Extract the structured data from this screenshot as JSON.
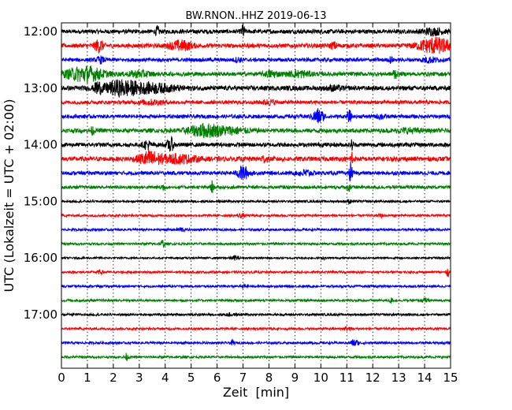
{
  "chart_data": {
    "type": "line",
    "title": "BW.RNON..HHZ 2019-06-13",
    "xlabel": "Zeit  [min]",
    "ylabel": "UTC (Lokalzeit = UTC + 02:00)",
    "xlim": [
      0,
      15
    ],
    "x_ticks": [
      0,
      1,
      2,
      3,
      4,
      5,
      6,
      7,
      8,
      9,
      10,
      11,
      12,
      13,
      14,
      15
    ],
    "x_tick_labels": [
      "0",
      "1",
      "2",
      "3",
      "4",
      "5",
      "6",
      "7",
      "8",
      "9",
      "10",
      "11",
      "12",
      "13",
      "14",
      "15"
    ],
    "y_tick_labels": [
      "12:00",
      "13:00",
      "14:00",
      "15:00",
      "16:00",
      "17:00"
    ],
    "grid": "vertical dotted",
    "color_cycle": [
      "#000000",
      "#ff0000",
      "#0000ff",
      "#008000"
    ],
    "trace_minutes": 15,
    "traces": [
      {
        "start": "12:00",
        "amplitude": 0.45,
        "events": [
          {
            "t": 3.7,
            "a": 1.0,
            "w": 0.05
          },
          {
            "t": 7.0,
            "a": 1.3,
            "w": 0.05
          },
          {
            "t": 14.3,
            "a": 0.6,
            "w": 0.3
          }
        ]
      },
      {
        "start": "12:15",
        "amplitude": 0.45,
        "events": [
          {
            "t": 1.45,
            "a": 1.3,
            "w": 0.12
          },
          {
            "t": 4.6,
            "a": 1.0,
            "w": 0.3
          },
          {
            "t": 10.5,
            "a": 0.6,
            "w": 0.1
          },
          {
            "t": 14.4,
            "a": 1.6,
            "w": 0.45
          }
        ]
      },
      {
        "start": "12:30",
        "amplitude": 0.4,
        "events": [
          {
            "t": 1.5,
            "a": 0.6,
            "w": 0.1
          },
          {
            "t": 6.8,
            "a": 0.4,
            "w": 0.1
          },
          {
            "t": 12.7,
            "a": 0.6,
            "w": 0.05
          },
          {
            "t": 14.2,
            "a": 0.5,
            "w": 0.2
          }
        ]
      },
      {
        "start": "12:45",
        "amplitude": 0.45,
        "events": [
          {
            "t": 0.9,
            "a": 1.6,
            "w": 0.5
          },
          {
            "t": 3.0,
            "a": 0.6,
            "w": 0.3
          },
          {
            "t": 8.1,
            "a": 0.6,
            "w": 0.2
          },
          {
            "t": 9.2,
            "a": 0.6,
            "w": 0.3
          },
          {
            "t": 12.85,
            "a": 1.2,
            "w": 0.05
          }
        ]
      },
      {
        "start": "13:00",
        "amplitude": 0.5,
        "events": [
          {
            "t": 1.4,
            "a": 1.3,
            "w": 0.08
          },
          {
            "t": 2.3,
            "a": 1.5,
            "w": 0.5
          },
          {
            "t": 3.6,
            "a": 0.8,
            "w": 0.6
          },
          {
            "t": 10.5,
            "a": 0.4,
            "w": 0.2
          }
        ]
      },
      {
        "start": "13:15",
        "amplitude": 0.4,
        "events": [
          {
            "t": 3.5,
            "a": 0.4,
            "w": 0.3
          },
          {
            "t": 8.0,
            "a": 0.4,
            "w": 0.2
          }
        ]
      },
      {
        "start": "13:30",
        "amplitude": 0.4,
        "events": [
          {
            "t": 9.9,
            "a": 1.5,
            "w": 0.15
          },
          {
            "t": 11.1,
            "a": 1.2,
            "w": 0.05
          },
          {
            "t": 12.3,
            "a": 0.5,
            "w": 0.1
          }
        ]
      },
      {
        "start": "13:45",
        "amplitude": 0.45,
        "events": [
          {
            "t": 1.2,
            "a": 0.8,
            "w": 0.05
          },
          {
            "t": 5.5,
            "a": 1.2,
            "w": 0.45
          },
          {
            "t": 6.5,
            "a": 0.6,
            "w": 0.5
          },
          {
            "t": 13.4,
            "a": 0.4,
            "w": 0.3
          }
        ]
      },
      {
        "start": "14:00",
        "amplitude": 0.45,
        "events": [
          {
            "t": 3.3,
            "a": 0.9,
            "w": 0.1
          },
          {
            "t": 4.2,
            "a": 1.5,
            "w": 0.08
          },
          {
            "t": 11.2,
            "a": 1.0,
            "w": 0.04
          }
        ]
      },
      {
        "start": "14:15",
        "amplitude": 0.5,
        "events": [
          {
            "t": 3.4,
            "a": 1.5,
            "w": 0.3
          },
          {
            "t": 4.5,
            "a": 0.8,
            "w": 0.5
          },
          {
            "t": 7.8,
            "a": 0.6,
            "w": 0.1
          },
          {
            "t": 11.2,
            "a": 1.7,
            "w": 0.04
          }
        ]
      },
      {
        "start": "14:30",
        "amplitude": 0.4,
        "events": [
          {
            "t": 7.0,
            "a": 1.5,
            "w": 0.15
          },
          {
            "t": 9.4,
            "a": 0.6,
            "w": 0.2
          },
          {
            "t": 11.15,
            "a": 2.2,
            "w": 0.04
          }
        ]
      },
      {
        "start": "14:45",
        "amplitude": 0.35,
        "events": [
          {
            "t": 3.9,
            "a": 0.8,
            "w": 0.05
          },
          {
            "t": 5.8,
            "a": 1.3,
            "w": 0.04
          },
          {
            "t": 11.1,
            "a": 1.2,
            "w": 0.04
          }
        ]
      },
      {
        "start": "15:00",
        "amplitude": 0.25,
        "events": [
          {
            "t": 11.1,
            "a": 0.4,
            "w": 0.05
          }
        ]
      },
      {
        "start": "15:15",
        "amplitude": 0.25,
        "events": [
          {
            "t": 6.9,
            "a": 0.4,
            "w": 0.1
          },
          {
            "t": 12.3,
            "a": 0.6,
            "w": 0.05
          }
        ]
      },
      {
        "start": "15:30",
        "amplitude": 0.25,
        "events": [
          {
            "t": 4.6,
            "a": 0.4,
            "w": 0.1
          }
        ]
      },
      {
        "start": "15:45",
        "amplitude": 0.25,
        "events": [
          {
            "t": 3.9,
            "a": 0.8,
            "w": 0.05
          }
        ]
      },
      {
        "start": "16:00",
        "amplitude": 0.2,
        "events": [
          {
            "t": 6.7,
            "a": 0.4,
            "w": 0.1
          },
          {
            "t": 10.1,
            "a": 0.3,
            "w": 0.05
          }
        ]
      },
      {
        "start": "16:15",
        "amplitude": 0.25,
        "events": [
          {
            "t": 1.5,
            "a": 0.3,
            "w": 0.1
          },
          {
            "t": 14.9,
            "a": 0.8,
            "w": 0.04
          }
        ]
      },
      {
        "start": "16:30",
        "amplitude": 0.25,
        "events": [
          {
            "t": 7.1,
            "a": 0.3,
            "w": 0.1
          }
        ]
      },
      {
        "start": "16:45",
        "amplitude": 0.25,
        "events": [
          {
            "t": 12.7,
            "a": 0.5,
            "w": 0.05
          },
          {
            "t": 14.0,
            "a": 0.4,
            "w": 0.1
          }
        ]
      },
      {
        "start": "17:00",
        "amplitude": 0.25,
        "events": [
          {
            "t": 6.5,
            "a": 0.3,
            "w": 0.1
          }
        ]
      },
      {
        "start": "17:15",
        "amplitude": 0.25,
        "events": [
          {
            "t": 11.0,
            "a": 0.3,
            "w": 0.1
          }
        ]
      },
      {
        "start": "17:30",
        "amplitude": 0.25,
        "events": [
          {
            "t": 6.6,
            "a": 0.5,
            "w": 0.05
          },
          {
            "t": 11.3,
            "a": 0.7,
            "w": 0.1
          }
        ]
      },
      {
        "start": "17:45",
        "amplitude": 0.25,
        "events": [
          {
            "t": 2.5,
            "a": 0.7,
            "w": 0.05
          }
        ]
      }
    ]
  }
}
